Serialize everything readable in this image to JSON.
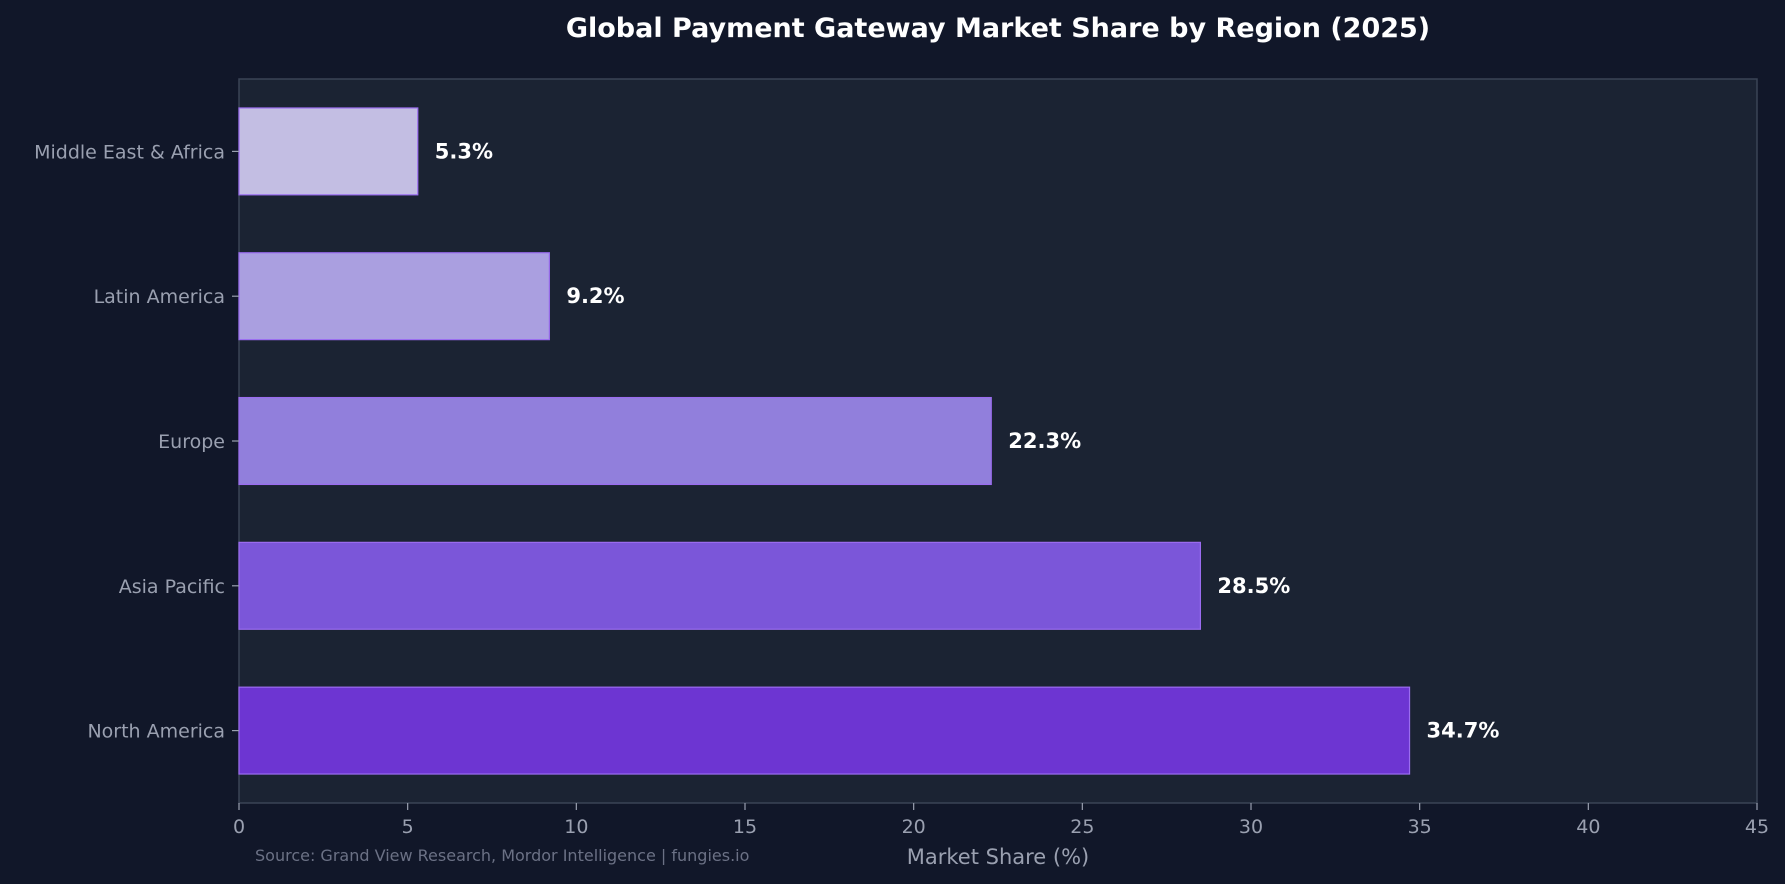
{
  "chart_data": {
    "type": "bar",
    "orientation": "horizontal",
    "title": "Global Payment Gateway Market Share by Region (2025)",
    "xlabel": "Market Share (%)",
    "ylabel": "",
    "categories": [
      "North America",
      "Asia Pacific",
      "Europe",
      "Latin America",
      "Middle East & Africa"
    ],
    "values": [
      34.7,
      28.5,
      22.3,
      9.2,
      5.3
    ],
    "value_labels": [
      "34.7%",
      "28.5%",
      "22.3%",
      "9.2%",
      "5.3%"
    ],
    "colors": [
      "#6d35d2",
      "#7b56d9",
      "#917fdc",
      "#aa9fe0",
      "#c3bee3"
    ],
    "edge_color": "#9b6cf0",
    "xlim": [
      0,
      45
    ],
    "xticks": [
      0,
      5,
      10,
      15,
      20,
      25,
      30,
      35,
      40,
      45
    ],
    "grid": false,
    "legend": "none"
  },
  "source": "Source: Grand View Research, Mordor Intelligence | fungies.io",
  "theme": {
    "background": "#111729",
    "plot_background": "#1b2333",
    "frame": "#3a4456",
    "text": "#ffffff",
    "muted_text": "#9aa0b0"
  }
}
